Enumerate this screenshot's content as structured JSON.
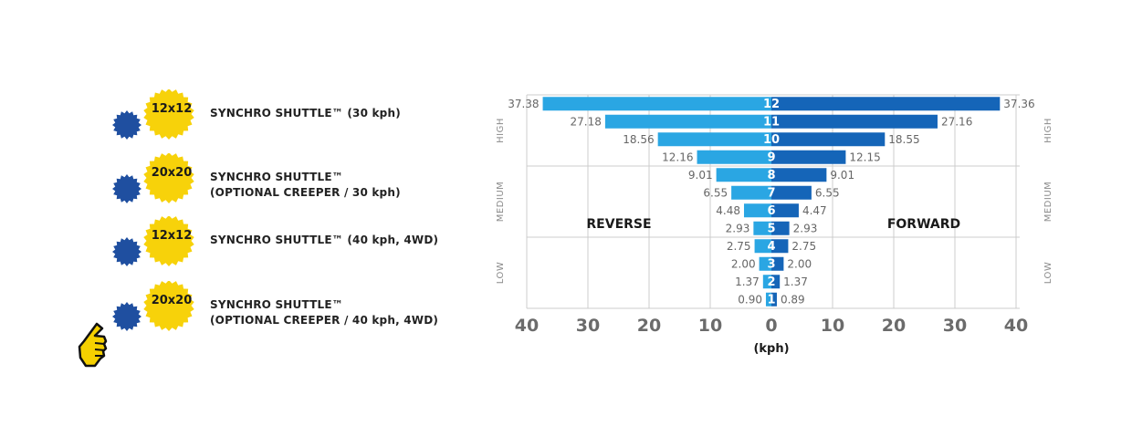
{
  "options": [
    {
      "gear": "12x12",
      "line1": "SYNCHRO SHUTTLE™ (30 kph)",
      "line2": ""
    },
    {
      "gear": "20x20",
      "line1": "SYNCHRO SHUTTLE™",
      "line2": "(OPTIONAL CREEPER / 30 kph)"
    },
    {
      "gear": "12x12",
      "line1": "SYNCHRO SHUTTLE™ (40 kph, 4WD)",
      "line2": ""
    },
    {
      "gear": "20x20",
      "line1": "SYNCHRO SHUTTLE™",
      "line2": "(OPTIONAL CREEPER / 40 kph, 4WD)"
    }
  ],
  "colors": {
    "gear_yellow": "#f7d20a",
    "gear_blue": "#1f4fa0",
    "reverse_bar": "#2aa6e3",
    "forward_bar": "#1565b8",
    "grid": "#cccccc",
    "label_gray": "#666666",
    "axis_tick": "#6b6b6b",
    "pointer_yellow": "#f5d000"
  },
  "icons": {
    "pointer": "hand-pointer-icon"
  },
  "chart_data": {
    "type": "bar",
    "orientation": "horizontal-diverging",
    "categories": [
      "12",
      "11",
      "10",
      "9",
      "8",
      "7",
      "6",
      "5",
      "4",
      "3",
      "2",
      "1"
    ],
    "series": [
      {
        "name": "REVERSE",
        "values": [
          37.38,
          27.18,
          18.56,
          12.16,
          9.01,
          6.55,
          4.48,
          2.93,
          2.75,
          2.0,
          1.37,
          0.9
        ],
        "labels": [
          "37.38",
          "27.18",
          "18.56",
          "12.16",
          "9.01",
          "6.55",
          "4.48",
          "2.93",
          "2.75",
          "2.00",
          "1.37",
          "0.90"
        ]
      },
      {
        "name": "FORWARD",
        "values": [
          37.36,
          27.16,
          18.55,
          12.15,
          9.01,
          6.55,
          4.47,
          2.93,
          2.75,
          2.0,
          1.37,
          0.89
        ],
        "labels": [
          "37.36",
          "27.16",
          "18.55",
          "12.15",
          "9.01",
          "6.55",
          "4.47",
          "2.93",
          "2.75",
          "2.00",
          "1.37",
          "0.89"
        ]
      }
    ],
    "ranges": [
      {
        "name": "HIGH",
        "gears": [
          "12",
          "11",
          "10",
          "9"
        ]
      },
      {
        "name": "MEDIUM",
        "gears": [
          "8",
          "7",
          "6",
          "5"
        ]
      },
      {
        "name": "LOW",
        "gears": [
          "4",
          "3",
          "2",
          "1"
        ]
      }
    ],
    "xticks": [
      "40",
      "30",
      "20",
      "10",
      "0",
      "10",
      "20",
      "30",
      "40"
    ],
    "xlabel": "(kph)",
    "xlim": [
      -40,
      40
    ],
    "grid": true
  }
}
